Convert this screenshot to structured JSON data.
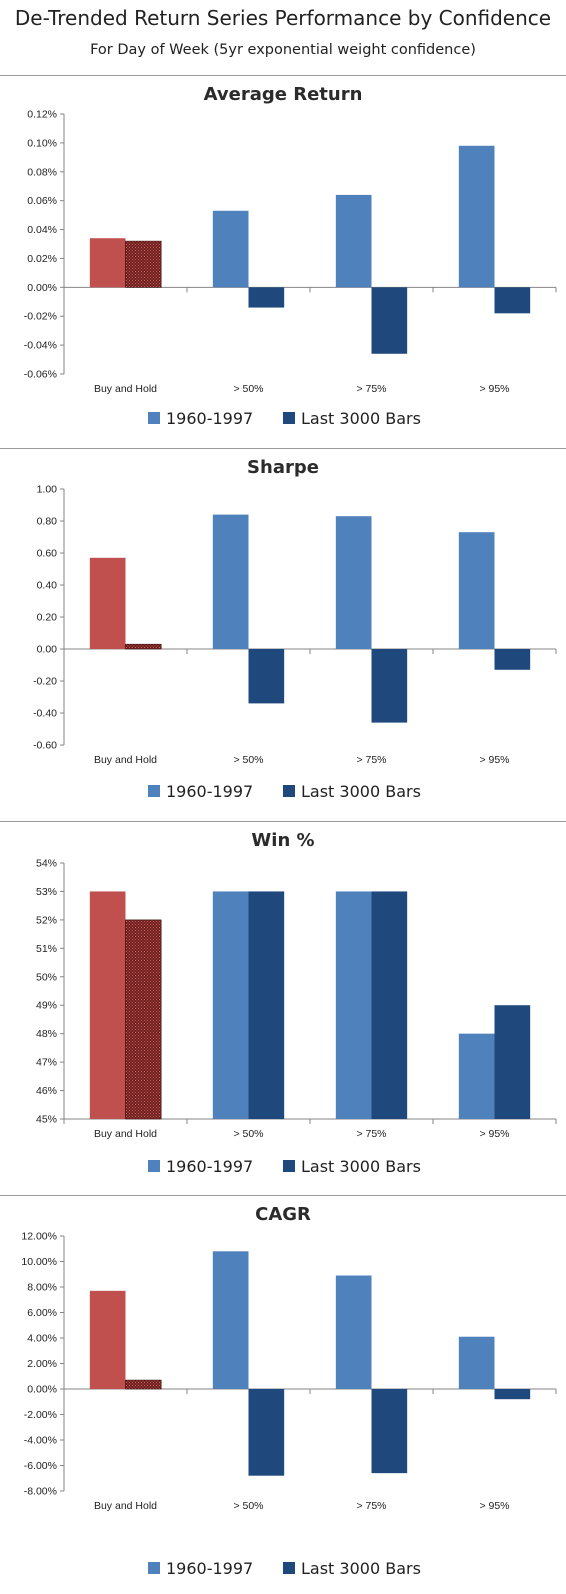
{
  "header": {
    "title": "De-Trended Return Series Performance by Confidence",
    "subtitle": "For Day of Week (5yr exponential weight confidence)"
  },
  "colors": {
    "series_1960_1997": "#4f81bd",
    "series_last_3000": "#1f497d",
    "buy_hold_1960_1997": "#c0504d",
    "buy_hold_last_3000": "#6b1f1f"
  },
  "chart_data": [
    {
      "type": "bar",
      "title": "Average Return",
      "categories": [
        "Buy and Hold",
        "> 50%",
        "> 75%",
        "> 95%"
      ],
      "series": [
        {
          "name": "1960-1997",
          "values": [
            0.034,
            0.053,
            0.064,
            0.098
          ]
        },
        {
          "name": "Last 3000 Bars",
          "values": [
            0.032,
            -0.014,
            -0.046,
            -0.018
          ]
        }
      ],
      "ylim": [
        -0.06,
        0.12
      ],
      "ytick_step": 0.02,
      "yticks": [
        "0.12%",
        "0.10%",
        "0.08%",
        "0.06%",
        "0.04%",
        "0.02%",
        "0.00%",
        "-0.02%",
        "-0.04%",
        "-0.06%"
      ],
      "legend": "bottom",
      "grid": false
    },
    {
      "type": "bar",
      "title": "Sharpe",
      "categories": [
        "Buy and Hold",
        "> 50%",
        "> 75%",
        "> 95%"
      ],
      "series": [
        {
          "name": "1960-1997",
          "values": [
            0.57,
            0.84,
            0.83,
            0.73
          ]
        },
        {
          "name": "Last 3000 Bars",
          "values": [
            0.03,
            -0.34,
            -0.46,
            -0.13
          ]
        }
      ],
      "ylim": [
        -0.6,
        1.0
      ],
      "ytick_step": 0.2,
      "yticks": [
        "1.00",
        "0.80",
        "0.60",
        "0.40",
        "0.20",
        "0.00",
        "-0.20",
        "-0.40",
        "-0.60"
      ],
      "legend": "bottom",
      "grid": false
    },
    {
      "type": "bar",
      "title": "Win %",
      "categories": [
        "Buy and Hold",
        "> 50%",
        "> 75%",
        "> 95%"
      ],
      "series": [
        {
          "name": "1960-1997",
          "values": [
            53,
            53,
            53,
            48
          ]
        },
        {
          "name": "Last 3000 Bars",
          "values": [
            52,
            53,
            53,
            49
          ]
        }
      ],
      "ylim": [
        45,
        54
      ],
      "ytick_step": 1,
      "yticks": [
        "54%",
        "53%",
        "52%",
        "51%",
        "50%",
        "49%",
        "48%",
        "47%",
        "46%",
        "45%"
      ],
      "legend": "bottom",
      "grid": false
    },
    {
      "type": "bar",
      "title": "CAGR",
      "categories": [
        "Buy and Hold",
        "> 50%",
        "> 75%",
        "> 95%"
      ],
      "series": [
        {
          "name": "1960-1997",
          "values": [
            7.7,
            10.8,
            8.9,
            4.1
          ]
        },
        {
          "name": "Last 3000 Bars",
          "values": [
            0.7,
            -6.8,
            -6.6,
            -0.8
          ]
        }
      ],
      "ylim": [
        -8,
        12
      ],
      "ytick_step": 2,
      "yticks": [
        "12.00%",
        "10.00%",
        "8.00%",
        "6.00%",
        "4.00%",
        "2.00%",
        "0.00%",
        "-2.00%",
        "-4.00%",
        "-6.00%",
        "-8.00%"
      ],
      "legend": "bottom",
      "grid": false
    }
  ]
}
